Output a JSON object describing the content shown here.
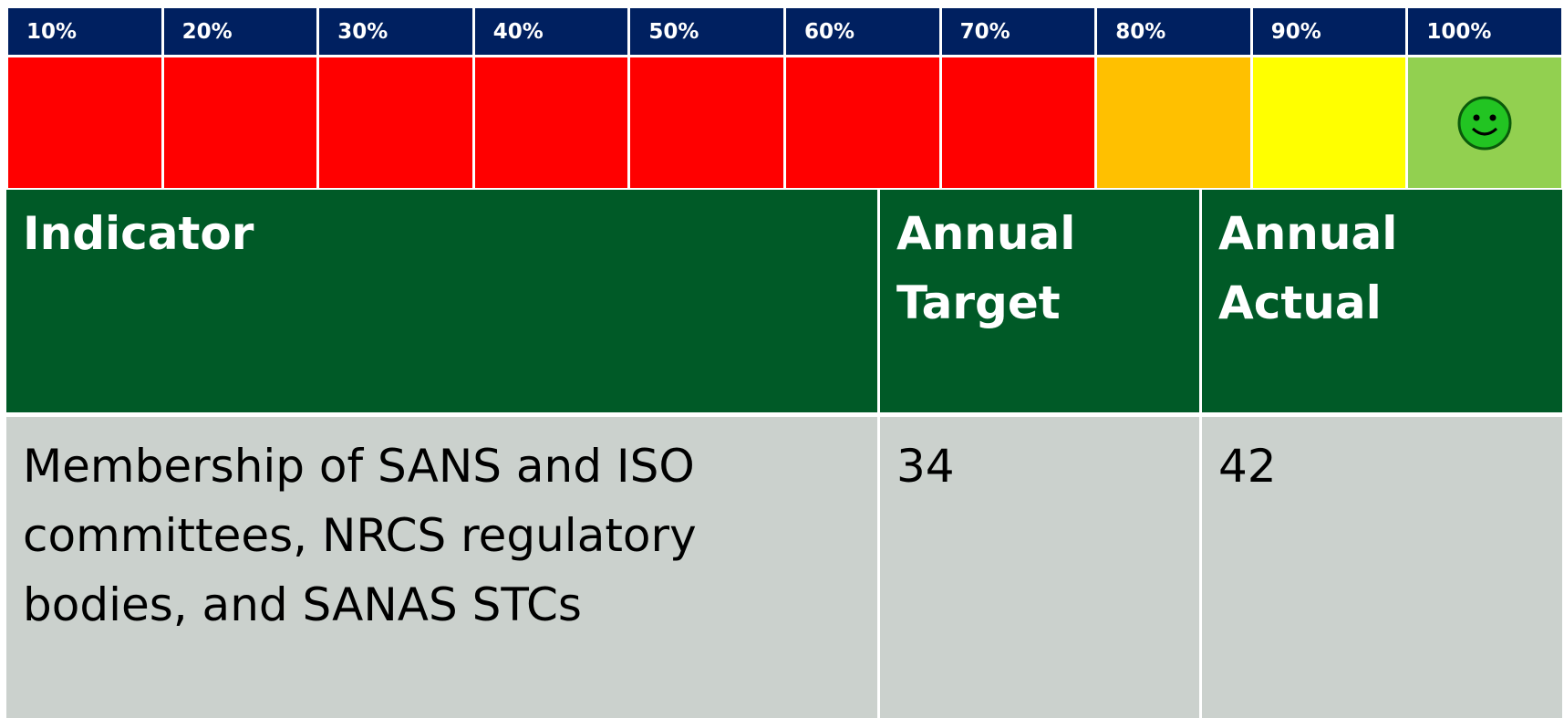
{
  "scale": {
    "labels": [
      "10%",
      "20%",
      "30%",
      "40%",
      "50%",
      "60%",
      "70%",
      "80%",
      "90%",
      "100%"
    ],
    "colors": [
      "#ff0000",
      "#ff0000",
      "#ff0000",
      "#ff0000",
      "#ff0000",
      "#ff0000",
      "#ff0000",
      "#ffc000",
      "#ffff00",
      "#92d050"
    ]
  },
  "table": {
    "headers": [
      "Indicator",
      "Annual Target",
      "Annual Actual"
    ],
    "rows": [
      [
        "Membership of SANS and ISO committees, NRCS regulatory bodies, and SANAS STCs",
        34,
        42
      ]
    ]
  }
}
